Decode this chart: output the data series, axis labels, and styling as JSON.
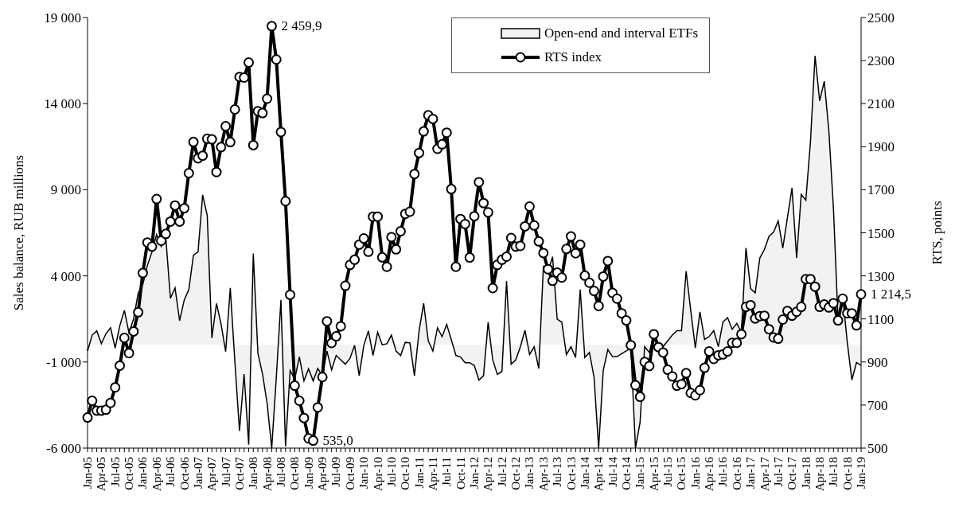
{
  "chart_data": {
    "type": "line",
    "ylabel": "Sales balance, RUB millions",
    "y2label": "RTS, points",
    "categories": [
      "Jan-05",
      null,
      null,
      "Apr-05",
      null,
      null,
      "Jul-05",
      null,
      null,
      "Oct-05",
      null,
      null,
      "Jan-06",
      null,
      null,
      "Apr-06",
      null,
      null,
      "Jul-06",
      null,
      null,
      "Oct-06",
      null,
      null,
      "Jan-07",
      null,
      null,
      "Apr-07",
      null,
      null,
      "Jul-07",
      null,
      null,
      "Oct-07",
      null,
      null,
      "Jan-08",
      null,
      null,
      "Apr-08",
      null,
      null,
      "Jul-08",
      null,
      null,
      "Oct-08",
      null,
      null,
      "Jan-09",
      null,
      null,
      "Apr-09",
      null,
      null,
      "Jul-09",
      null,
      null,
      "Oct-09",
      null,
      null,
      "Jan-10",
      null,
      null,
      "Apr-10",
      null,
      null,
      "Jul-10",
      null,
      null,
      "Oct-10",
      null,
      null,
      "Jan-11",
      null,
      null,
      "Apr-11",
      null,
      null,
      "Jul-11",
      null,
      null,
      "Oct-11",
      null,
      null,
      "Jan-12",
      null,
      null,
      "Apr-12",
      null,
      null,
      "Jul-12",
      null,
      null,
      "Oct-12",
      null,
      null,
      "Jan-13",
      null,
      null,
      "Apr-13",
      null,
      null,
      "Jul-13",
      null,
      null,
      "Oct-13",
      null,
      null,
      "Jan-14",
      null,
      null,
      "Apr-14",
      null,
      null,
      "Jul-14",
      null,
      null,
      "Oct-14",
      null,
      null,
      "Jan-15",
      null,
      null,
      "Apr-15",
      null,
      null,
      "Jul-15",
      null,
      null,
      "Oct-15",
      null,
      null,
      "Jan-16",
      null,
      null,
      "Apr-16",
      null,
      null,
      "Jul-16",
      null,
      null,
      "Oct-16",
      null,
      null,
      "Jan-17",
      null,
      null,
      "Apr-17",
      null,
      null,
      "Jul-17",
      null,
      null,
      "Oct-17",
      null,
      null,
      "Jan-18",
      null,
      null,
      "Apr-18",
      null,
      null,
      "Jul-18",
      null,
      null,
      "Oct-18",
      null,
      null,
      "Jan-19"
    ],
    "series": [
      {
        "name": "Open-end and interval ETFs",
        "type": "area",
        "axis": "y",
        "color": "#f2f2f2",
        "values": [
          -360,
          560,
          810,
          60,
          640,
          990,
          -190,
          1100,
          2000,
          700,
          1500,
          3000,
          3500,
          4600,
          5400,
          6400,
          5700,
          6200,
          2700,
          3300,
          1400,
          2600,
          3200,
          5200,
          5400,
          8700,
          7500,
          390,
          2400,
          1200,
          -400,
          3300,
          -1000,
          -5000,
          -1700,
          -5800,
          5300,
          -500,
          -1700,
          -3400,
          -6000,
          -1900,
          2600,
          -5900,
          -1500,
          -2000,
          -700,
          -2100,
          -1400,
          -2100,
          -1380,
          -1800,
          -370,
          -1460,
          -620,
          -880,
          -1130,
          -790,
          -30,
          -1800,
          -30,
          810,
          -620,
          720,
          0,
          60,
          560,
          -370,
          -620,
          140,
          110,
          -1800,
          810,
          2410,
          220,
          -370,
          980,
          470,
          1180,
          300,
          -620,
          -710,
          -1040,
          -1040,
          -1210,
          -2050,
          -1800,
          1310,
          -880,
          -1720,
          -1550,
          3700,
          -1130,
          -880,
          -120,
          840,
          -570,
          -120,
          -1380,
          4540,
          4260,
          5110,
          1480,
          1310,
          -570,
          -120,
          -740,
          3200,
          -740,
          -450,
          -1880,
          -6000,
          -1500,
          -280,
          -690,
          -690,
          -520,
          -360,
          -200,
          -6000,
          -4500,
          -110,
          -450,
          560,
          0,
          -110,
          230,
          560,
          820,
          820,
          4270,
          2000,
          -190,
          1910,
          310,
          480,
          820,
          -110,
          1320,
          1580,
          900,
          1240,
          730,
          5620,
          3260,
          3010,
          5030,
          5530,
          6290,
          6540,
          7180,
          5620,
          7380,
          9100,
          5030,
          8730,
          8390,
          11760,
          16780,
          14150,
          15300,
          12430,
          7890,
          1410,
          2840,
          140,
          -2040,
          -1030,
          -1200
        ]
      },
      {
        "name": "RTS index",
        "axis": "y2",
        "color": "#000000",
        "marker": "circle",
        "values": [
          642,
          720,
          674,
          674,
          678,
          710,
          782,
          883,
          1012,
          941,
          1042,
          1131,
          1313,
          1455,
          1436,
          1657,
          1463,
          1495,
          1552,
          1627,
          1552,
          1614,
          1777,
          1922,
          1846,
          1858,
          1937,
          1934,
          1782,
          1898,
          1995,
          1921,
          2073,
          2224,
          2221,
          2291,
          1907,
          2065,
          2056,
          2123,
          2459.9,
          2305,
          1968,
          1647,
          1212,
          790,
          720,
          640,
          545,
          535.0,
          689,
          830,
          1089,
          988,
          1019,
          1066,
          1254,
          1351,
          1375,
          1445,
          1474,
          1412,
          1575,
          1575,
          1386,
          1342,
          1480,
          1423,
          1507,
          1588,
          1598,
          1773,
          1871,
          1971,
          2046,
          2029,
          1890,
          1911,
          1965,
          1703,
          1342,
          1564,
          1541,
          1385,
          1577,
          1735,
          1638,
          1595,
          1243,
          1351,
          1375,
          1389,
          1476,
          1436,
          1439,
          1530,
          1622,
          1534,
          1460,
          1406,
          1331,
          1277,
          1315,
          1292,
          1425,
          1483,
          1405,
          1445,
          1301,
          1268,
          1230,
          1160,
          1297,
          1369,
          1221,
          1194,
          1126,
          1093,
          978,
          792,
          738,
          900,
          881,
          1029,
          969,
          944,
          864,
          833,
          790,
          797,
          848,
          756,
          745,
          769,
          873,
          949,
          914,
          931,
          935,
          949,
          989,
          989,
          1029,
          1156,
          1164,
          1102,
          1113,
          1115,
          1052,
          1014,
          1008,
          1097,
          1137,
          1115,
          1133,
          1156,
          1285,
          1285,
          1250,
          1156,
          1167,
          1153,
          1173,
          1093,
          1194,
          1126,
          1126,
          1070,
          1214.5
        ],
        "value_labels": [
          null,
          null,
          null,
          null,
          null,
          null,
          null,
          null,
          null,
          null,
          null,
          null,
          null,
          null,
          null,
          null,
          null,
          null,
          null,
          null,
          null,
          null,
          null,
          null,
          null,
          null,
          null,
          null,
          null,
          null,
          null,
          null,
          null,
          null,
          null,
          null,
          null,
          null,
          null,
          null,
          "2 459,9",
          null,
          null,
          null,
          null,
          null,
          null,
          null,
          null,
          "535,0",
          null,
          null,
          null,
          null,
          null,
          null,
          null,
          null,
          null,
          null,
          null,
          null,
          null,
          null,
          null,
          null,
          null,
          null,
          null,
          null,
          null,
          null,
          null,
          null,
          null,
          null,
          null,
          null,
          null,
          null,
          null,
          null,
          null,
          null,
          null,
          null,
          null,
          null,
          null,
          null,
          null,
          null,
          null,
          null,
          null,
          null,
          null,
          null,
          null,
          null,
          null,
          null,
          null,
          null,
          null,
          null,
          null,
          null,
          null,
          null,
          null,
          null,
          null,
          null,
          null,
          null,
          null,
          null,
          null,
          null,
          null,
          null,
          null,
          null,
          null,
          null,
          null,
          null,
          null,
          null,
          null,
          null,
          null,
          null,
          null,
          null,
          null,
          null,
          null,
          null,
          null,
          null,
          null,
          null,
          null,
          null,
          null,
          null,
          null,
          null,
          null,
          null,
          null,
          null,
          null,
          null,
          null,
          null,
          null,
          null,
          null,
          null,
          null,
          null,
          null,
          null,
          null,
          null,
          "1 214,5"
        ]
      }
    ],
    "ylim": [
      -6000,
      19000
    ],
    "yticks": [
      {
        "value": -6000,
        "label": "-6 000"
      },
      {
        "value": -1000,
        "label": "-1 000"
      },
      {
        "value": 4000,
        "label": "4 000"
      },
      {
        "value": 9000,
        "label": "9 000"
      },
      {
        "value": 14000,
        "label": "14 000"
      },
      {
        "value": 19000,
        "label": "19 000"
      }
    ],
    "y2lim": [
      500,
      2500
    ],
    "y2ticks": [
      500,
      700,
      900,
      1100,
      1300,
      1500,
      1700,
      1900,
      2100,
      2300,
      2500
    ],
    "legend": "top right"
  }
}
